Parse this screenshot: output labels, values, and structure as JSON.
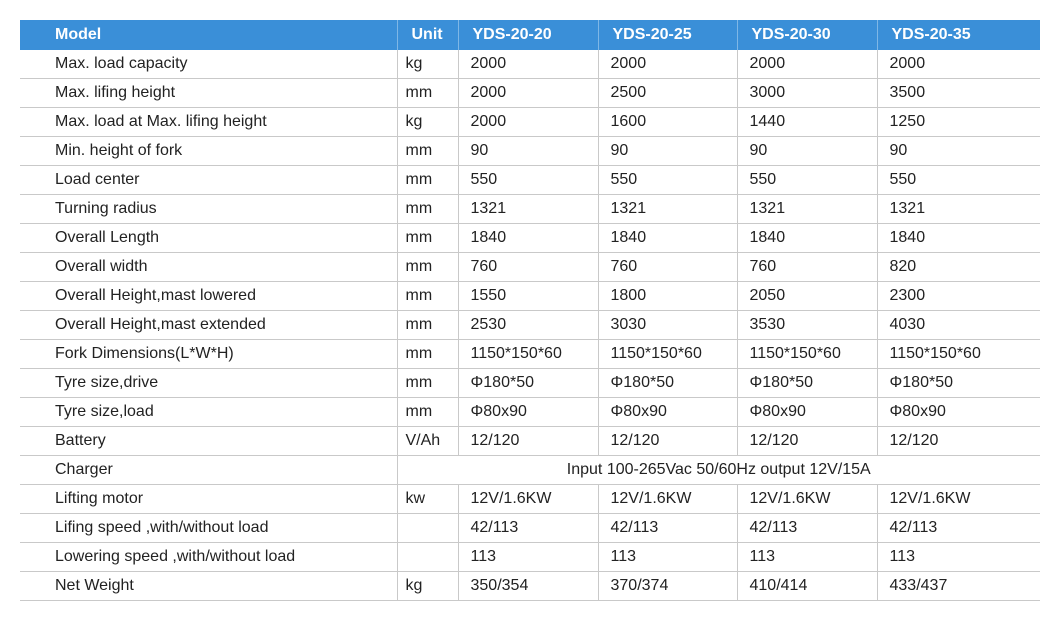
{
  "table": {
    "header": [
      "Model",
      "Unit",
      "YDS-20-20",
      "YDS-20-25",
      "YDS-20-30",
      "YDS-20-35"
    ],
    "rows": [
      {
        "label": "Max. load capacity",
        "unit": "kg",
        "values": [
          "2000",
          "2000",
          "2000",
          "2000"
        ]
      },
      {
        "label": "Max. lifing height",
        "unit": "mm",
        "values": [
          "2000",
          "2500",
          "3000",
          "3500"
        ]
      },
      {
        "label": "Max. load at Max. lifing height",
        "unit": "kg",
        "values": [
          "2000",
          "1600",
          "1440",
          "1250"
        ]
      },
      {
        "label": "Min. height of fork",
        "unit": "mm",
        "values": [
          "90",
          "90",
          "90",
          "90"
        ]
      },
      {
        "label": "Load center",
        "unit": "mm",
        "values": [
          "550",
          "550",
          "550",
          "550"
        ]
      },
      {
        "label": "Turning radius",
        "unit": "mm",
        "values": [
          "1321",
          "1321",
          "1321",
          "1321"
        ]
      },
      {
        "label": "Overall Length",
        "unit": "mm",
        "values": [
          "1840",
          "1840",
          "1840",
          "1840"
        ]
      },
      {
        "label": "Overall width",
        "unit": "mm",
        "values": [
          "760",
          "760",
          "760",
          "820"
        ]
      },
      {
        "label": "Overall Height,mast lowered",
        "unit": "mm",
        "values": [
          "1550",
          "1800",
          "2050",
          "2300"
        ]
      },
      {
        "label": "Overall Height,mast extended",
        "unit": "mm",
        "values": [
          "2530",
          "3030",
          "3530",
          "4030"
        ]
      },
      {
        "label": "Fork Dimensions(L*W*H)",
        "unit": "mm",
        "values": [
          "1150*150*60",
          "1150*150*60",
          "1150*150*60",
          "1150*150*60"
        ]
      },
      {
        "label": "Tyre size,drive",
        "unit": "mm",
        "values": [
          "Φ180*50",
          "Φ180*50",
          "Φ180*50",
          "Φ180*50"
        ]
      },
      {
        "label": "Tyre size,load",
        "unit": "mm",
        "values": [
          "Φ80x90",
          "Φ80x90",
          "Φ80x90",
          "Φ80x90"
        ]
      },
      {
        "label": "Battery",
        "unit": "V/Ah",
        "values": [
          "12/120",
          "12/120",
          "12/120",
          "12/120"
        ]
      },
      {
        "label": "Charger",
        "note": "Input 100-265Vac 50/60Hz output 12V/15A"
      },
      {
        "label": "Lifting motor",
        "unit": "kw",
        "values": [
          "12V/1.6KW",
          "12V/1.6KW",
          "12V/1.6KW",
          "12V/1.6KW"
        ]
      },
      {
        "label": "Lifing speed ,with/without load",
        "values": [
          "42/113",
          "42/113",
          "42/113",
          "42/113"
        ]
      },
      {
        "label": "Lowering speed ,with/without load",
        "values": [
          "113",
          "113",
          "113",
          "113"
        ]
      },
      {
        "label": "Net Weight",
        "unit": "kg",
        "values": [
          "350/354",
          "370/374",
          "410/414",
          "433/437"
        ]
      }
    ]
  }
}
